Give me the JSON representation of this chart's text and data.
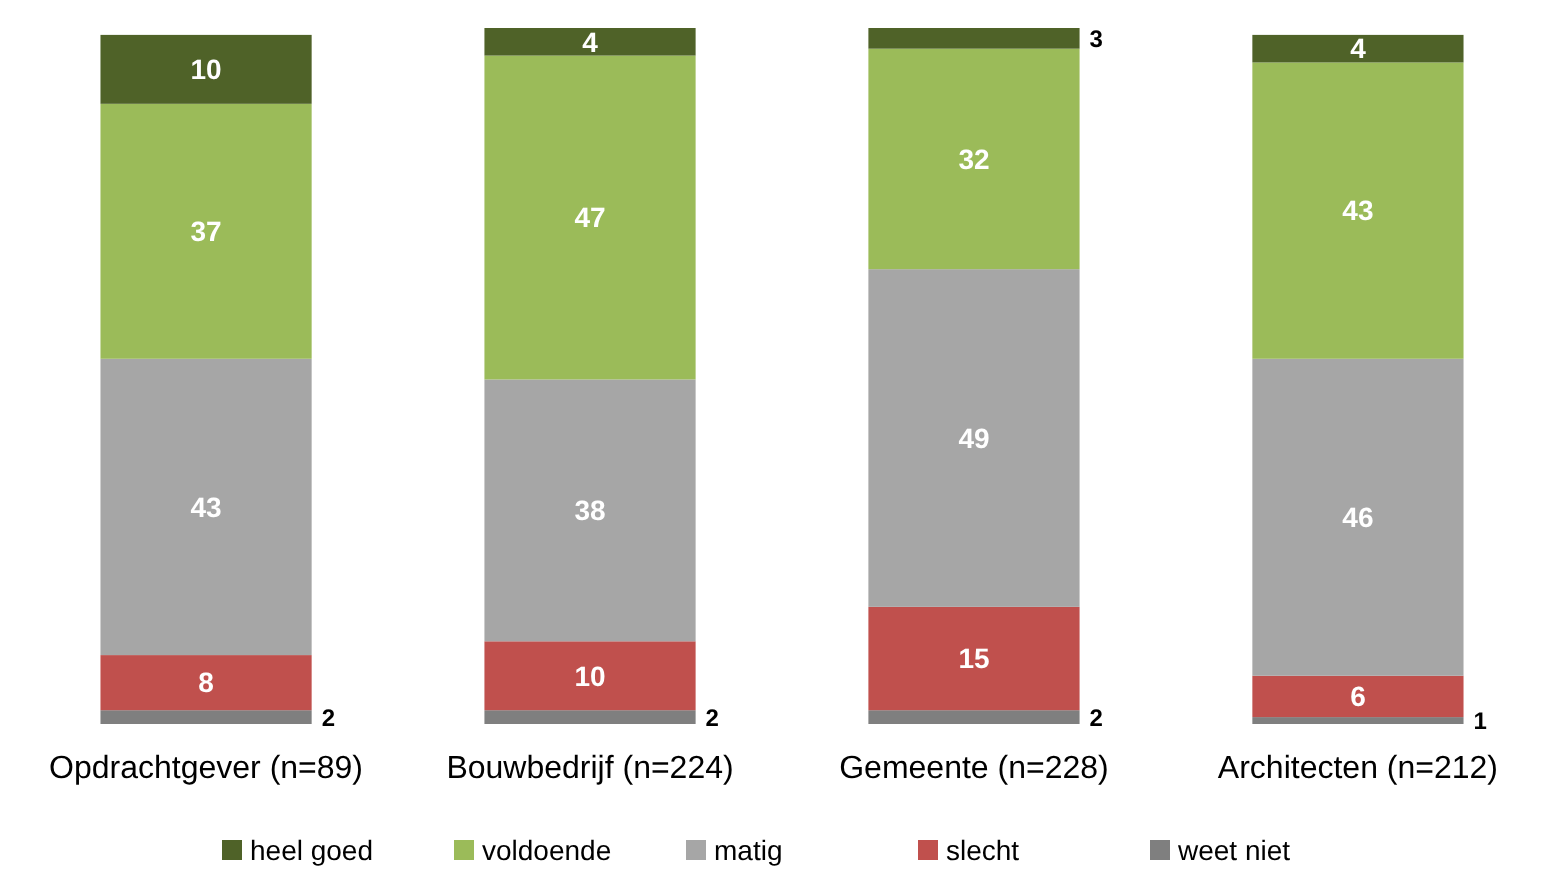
{
  "chart_data": {
    "type": "bar",
    "stacked": true,
    "data_labels": true,
    "legend": "bottom",
    "grid": false,
    "categories": [
      "Opdrachtgever (n=89)",
      "Bouwbedrijf (n=224)",
      "Gemeente (n=228)",
      "Architecten (n=212)"
    ],
    "series": [
      {
        "name": "weet niet",
        "color": "#7f7f7f",
        "values": [
          2,
          2,
          2,
          1
        ]
      },
      {
        "name": "slecht",
        "color": "#c0504d",
        "values": [
          8,
          10,
          15,
          6
        ]
      },
      {
        "name": "matig",
        "color": "#a6a6a6",
        "values": [
          43,
          38,
          49,
          46
        ]
      },
      {
        "name": "voldoende",
        "color": "#9bbb59",
        "values": [
          37,
          47,
          32,
          43
        ]
      },
      {
        "name": "heel goed",
        "color": "#4f6228",
        "values": [
          10,
          4,
          3,
          4
        ]
      }
    ]
  }
}
